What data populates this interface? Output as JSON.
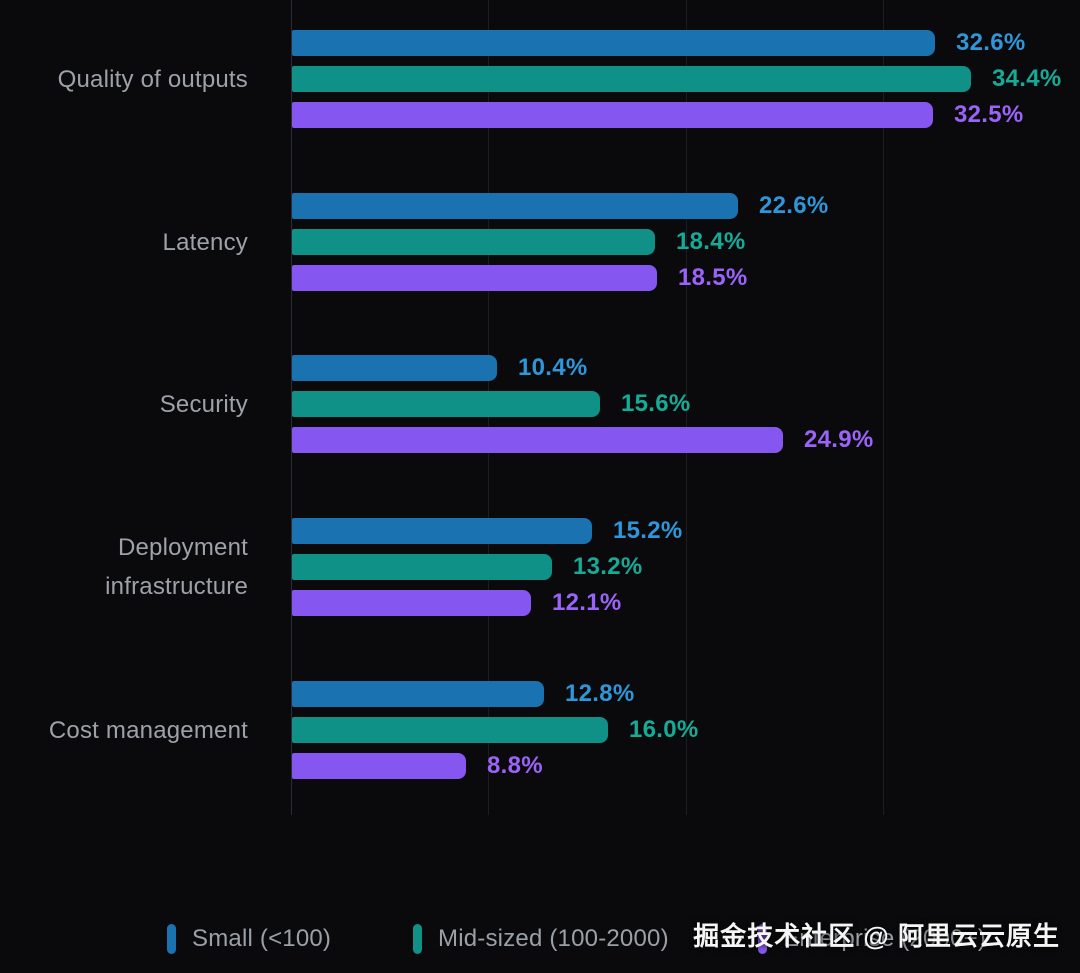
{
  "chart_data": {
    "type": "bar",
    "orientation": "horizontal",
    "title": "",
    "xlabel": "",
    "ylabel": "",
    "xlim": [
      0,
      40
    ],
    "gridlines": [
      10,
      20,
      30
    ],
    "grid": true,
    "legend_position": "bottom",
    "value_suffix": "%",
    "background_color": "#0a0a0c",
    "categories": [
      "Quality of outputs",
      "Latency",
      "Security",
      "Deployment infrastructure",
      "Cost management"
    ],
    "series": [
      {
        "name": "Small (<100)",
        "color": "#1a72b0",
        "label_color": "#2e96d9",
        "values": [
          32.6,
          22.6,
          10.4,
          15.2,
          12.8
        ]
      },
      {
        "name": "Mid-sized (100-2000)",
        "color": "#0f9188",
        "label_color": "#16ab97",
        "values": [
          34.4,
          18.4,
          15.6,
          13.2,
          16.0
        ]
      },
      {
        "name": "Enterprise (2000+)",
        "color": "#8557f0",
        "label_color": "#9b63fa",
        "values": [
          32.5,
          18.5,
          24.9,
          12.1,
          8.8
        ]
      }
    ]
  },
  "watermark": {
    "text": "掘金技术社区 @ 阿里云云原生"
  }
}
